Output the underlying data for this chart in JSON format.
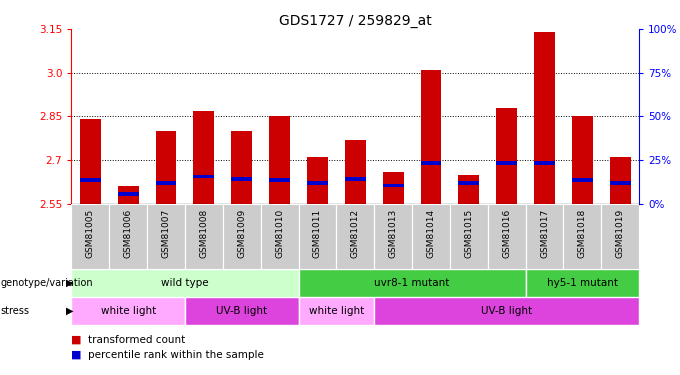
{
  "title": "GDS1727 / 259829_at",
  "samples": [
    "GSM81005",
    "GSM81006",
    "GSM81007",
    "GSM81008",
    "GSM81009",
    "GSM81010",
    "GSM81011",
    "GSM81012",
    "GSM81013",
    "GSM81014",
    "GSM81015",
    "GSM81016",
    "GSM81017",
    "GSM81018",
    "GSM81019"
  ],
  "red_values": [
    2.84,
    2.61,
    2.8,
    2.87,
    2.8,
    2.85,
    2.71,
    2.77,
    2.66,
    3.01,
    2.65,
    2.88,
    3.14,
    2.85,
    2.71
  ],
  "blue_values": [
    2.625,
    2.578,
    2.615,
    2.638,
    2.628,
    2.625,
    2.615,
    2.63,
    2.607,
    2.685,
    2.615,
    2.685,
    2.685,
    2.625,
    2.615
  ],
  "baseline": 2.55,
  "ylim_min": 2.55,
  "ylim_max": 3.15,
  "yticks": [
    2.55,
    2.7,
    2.85,
    3.0,
    3.15
  ],
  "right_ytick_positions": [
    2.55,
    2.7,
    2.85,
    3.0,
    3.15
  ],
  "right_ytick_labels": [
    "0%",
    "25%",
    "50%",
    "75%",
    "100%"
  ],
  "gridlines": [
    2.7,
    2.85,
    3.0
  ],
  "bar_width": 0.55,
  "bar_color_red": "#cc0000",
  "bar_color_blue": "#0000cc",
  "blue_bar_height": 0.013,
  "geno_data": [
    {
      "start": 0,
      "end": 6,
      "color": "#ccffcc",
      "label": "wild type"
    },
    {
      "start": 6,
      "end": 12,
      "color": "#44cc44",
      "label": "uvr8-1 mutant"
    },
    {
      "start": 12,
      "end": 15,
      "color": "#44cc44",
      "label": "hy5-1 mutant"
    }
  ],
  "stress_data": [
    {
      "start": 0,
      "end": 3,
      "color": "#ffaaff",
      "label": "white light"
    },
    {
      "start": 3,
      "end": 6,
      "color": "#dd44dd",
      "label": "UV-B light"
    },
    {
      "start": 6,
      "end": 8,
      "color": "#ffaaff",
      "label": "white light"
    },
    {
      "start": 8,
      "end": 15,
      "color": "#dd44dd",
      "label": "UV-B light"
    }
  ]
}
